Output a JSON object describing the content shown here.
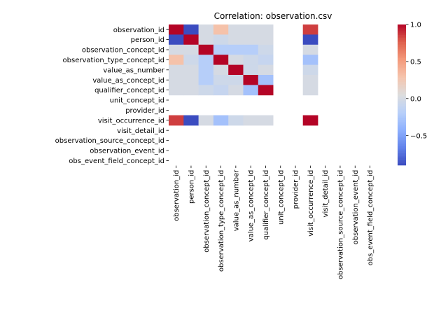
{
  "chart_data": {
    "type": "heatmap",
    "title": "Correlation: observation.csv",
    "xlabel": "",
    "ylabel": "",
    "labels": [
      "observation_id",
      "person_id",
      "observation_concept_id",
      "observation_type_concept_id",
      "value_as_number",
      "value_as_concept_id",
      "qualifier_concept_id",
      "unit_concept_id",
      "provider_id",
      "visit_occurrence_id",
      "visit_detail_id",
      "observation_source_concept_id",
      "observation_event_id",
      "obs_event_field_concept_id"
    ],
    "matrix": [
      [
        1.0,
        -0.9,
        0.0,
        0.3,
        0.0,
        0.0,
        0.0,
        null,
        null,
        0.85,
        null,
        null,
        null,
        null
      ],
      [
        -0.9,
        1.0,
        0.0,
        -0.05,
        0.0,
        0.0,
        0.0,
        null,
        null,
        -0.9,
        null,
        null,
        null,
        null
      ],
      [
        0.0,
        0.0,
        1.0,
        -0.2,
        -0.2,
        -0.2,
        -0.05,
        null,
        null,
        0.0,
        null,
        null,
        null,
        null
      ],
      [
        0.3,
        -0.05,
        -0.2,
        1.0,
        0.0,
        -0.05,
        -0.1,
        null,
        null,
        -0.3,
        null,
        null,
        null,
        null
      ],
      [
        0.0,
        0.0,
        -0.2,
        0.0,
        1.0,
        -0.05,
        0.0,
        null,
        null,
        -0.05,
        null,
        null,
        null,
        null
      ],
      [
        0.0,
        0.0,
        -0.2,
        -0.05,
        -0.05,
        1.0,
        -0.3,
        null,
        null,
        0.0,
        null,
        null,
        null,
        null
      ],
      [
        0.0,
        0.0,
        -0.05,
        -0.1,
        0.0,
        -0.3,
        1.0,
        null,
        null,
        0.0,
        null,
        null,
        null,
        null
      ],
      [
        null,
        null,
        null,
        null,
        null,
        null,
        null,
        null,
        null,
        null,
        null,
        null,
        null,
        null
      ],
      [
        null,
        null,
        null,
        null,
        null,
        null,
        null,
        null,
        null,
        null,
        null,
        null,
        null,
        null
      ],
      [
        0.85,
        -0.9,
        0.0,
        -0.3,
        -0.05,
        0.0,
        0.0,
        null,
        null,
        1.0,
        null,
        null,
        null,
        null
      ],
      [
        null,
        null,
        null,
        null,
        null,
        null,
        null,
        null,
        null,
        null,
        null,
        null,
        null,
        null
      ],
      [
        null,
        null,
        null,
        null,
        null,
        null,
        null,
        null,
        null,
        null,
        null,
        null,
        null,
        null
      ],
      [
        null,
        null,
        null,
        null,
        null,
        null,
        null,
        null,
        null,
        null,
        null,
        null,
        null,
        null
      ],
      [
        null,
        null,
        null,
        null,
        null,
        null,
        null,
        null,
        null,
        null,
        null,
        null,
        null,
        null
      ]
    ],
    "colormap": "coolwarm",
    "vmin": -0.9,
    "vmax": 1.0,
    "colorbar_ticks": [
      1.0,
      0.5,
      0.0,
      -0.5
    ],
    "colorbar_tick_labels": [
      "1.0",
      "0.5",
      "0.0",
      "−0.5"
    ],
    "grid": false,
    "legend": "colorbar-right"
  }
}
